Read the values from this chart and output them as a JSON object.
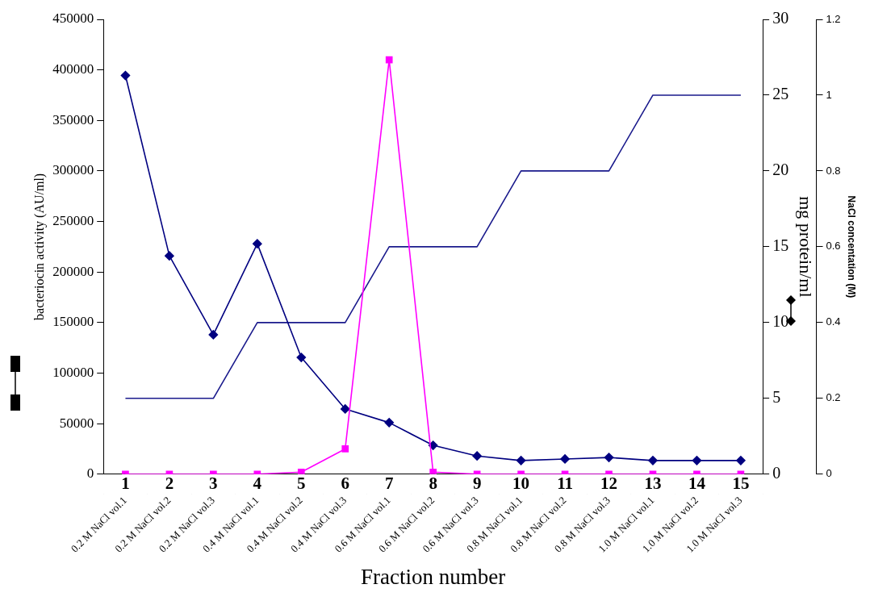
{
  "chart_data": {
    "type": "line",
    "xlabel": "Fraction number",
    "ylabel": "bacteriocin activity (AU/ml)",
    "y2label": "mg protein/ml",
    "y3label": "NaCl concentation (M)",
    "x2lim": [
      0.5,
      15.5
    ],
    "x2ticks": [
      1,
      2,
      3,
      4,
      5,
      6,
      7,
      8,
      9,
      10,
      11,
      12,
      13,
      14,
      15
    ],
    "categories": [
      "0.2 M NaCl vol.1",
      "0.2 M NaCl vol.2",
      "0.2 M NaCl vol.3",
      "0.4 M NaCl vol.1",
      "0.4 M NaCl vol.2",
      "0.4 M NaCl vol.3",
      "0.6 M NaCl vol.1",
      "0.6 M NaCl vol.2",
      "0.6 M NaCl vol.3",
      "0.8 M NaCl vol.1",
      "0.8 M NaCl vol.2",
      "0.8 M NaCl vol.3",
      "1.0 M NaCl vol.1",
      "1.0 M NaCl vol.2",
      "1.0 M NaCl vol.3"
    ],
    "series": [
      {
        "color": "#ff00ff",
        "marker": "square",
        "values": [
          0,
          0,
          0,
          0,
          2000,
          25000,
          410000,
          2000,
          0,
          0,
          0,
          0,
          0,
          0,
          0
        ]
      },
      {
        "color": "#000080",
        "marker": "diamond",
        "axis": "y2",
        "values": [
          26.3,
          14.4,
          9.2,
          15.2,
          7.7,
          4.3,
          3.4,
          1.9,
          1.2,
          0.9,
          1.0,
          1.1,
          0.9,
          0.9,
          0.9
        ]
      },
      {
        "color": "#1a1a8c",
        "marker": "none",
        "axis": "y3",
        "values": [
          0.2,
          0.2,
          0.2,
          0.4,
          0.4,
          0.4,
          0.6,
          0.6,
          0.6,
          0.8,
          0.8,
          0.8,
          1.0,
          1.0,
          1.0
        ]
      }
    ],
    "ylim": [
      0,
      450000
    ],
    "yticks": [
      0,
      50000,
      100000,
      150000,
      200000,
      250000,
      300000,
      350000,
      400000,
      450000
    ],
    "y2lim": [
      0,
      30
    ],
    "y2ticks": [
      0,
      5,
      10,
      15,
      20,
      25,
      30
    ],
    "y3lim": [
      0,
      1.2
    ],
    "y3ticks": [
      0,
      0.2,
      0.4,
      0.6,
      0.8,
      1,
      1.2
    ],
    "grid": false,
    "legend": false
  }
}
